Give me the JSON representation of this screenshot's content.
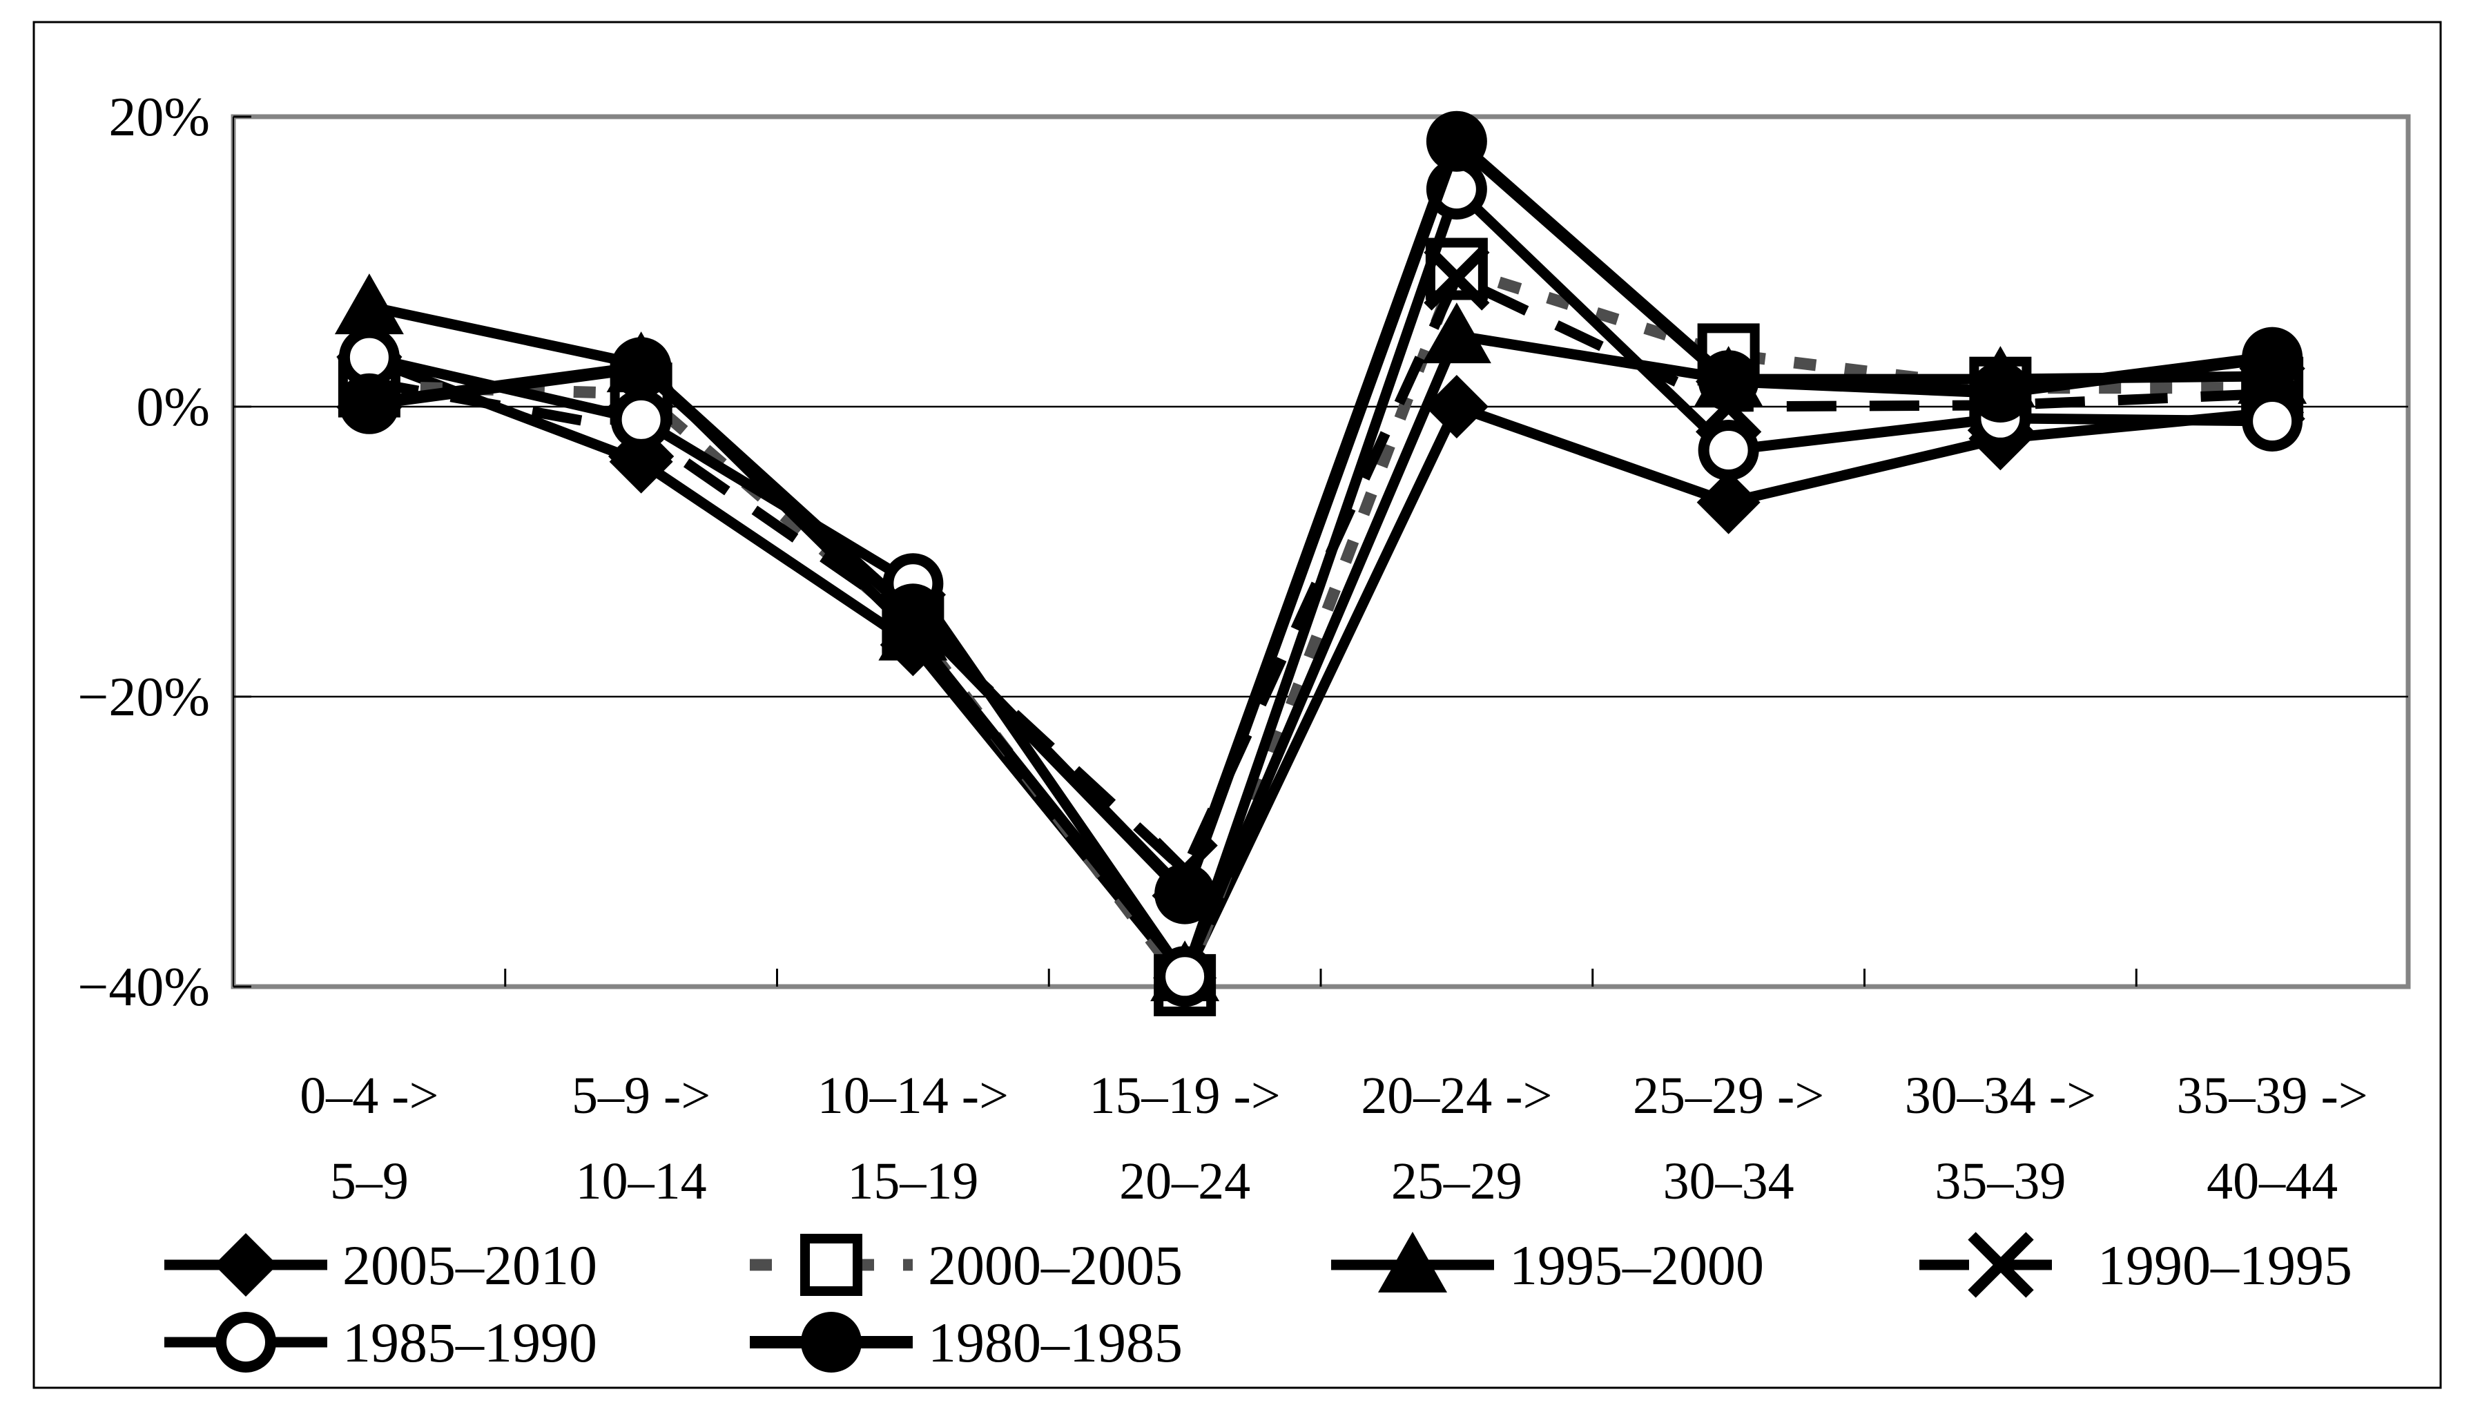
{
  "chart_data": {
    "type": "line",
    "title": "",
    "xlabel": "",
    "ylabel": "",
    "y_axis": {
      "min": -40,
      "max": 20,
      "unit": "%",
      "ticks": [
        {
          "value": 20,
          "label": "20%"
        },
        {
          "value": 0,
          "label": "0%"
        },
        {
          "value": -20,
          "label": "−20%"
        },
        {
          "value": -40,
          "label": "−40%"
        }
      ],
      "gridline_values": [
        0,
        -20
      ]
    },
    "categories": [
      {
        "top": "0–4 ->",
        "bottom": "5–9"
      },
      {
        "top": "5–9 ->",
        "bottom": "10–14"
      },
      {
        "top": "10–14 ->",
        "bottom": "15–19"
      },
      {
        "top": "15–19 ->",
        "bottom": "20–24"
      },
      {
        "top": "20–24 ->",
        "bottom": "25–29"
      },
      {
        "top": "25–29 ->",
        "bottom": "30–34"
      },
      {
        "top": "30–34 ->",
        "bottom": "35–39"
      },
      {
        "top": "35–39 ->",
        "bottom": "40–44"
      }
    ],
    "series": [
      {
        "name": "2005–2010",
        "marker": "filled-diamond",
        "line_style": "solid",
        "color": "#000000",
        "values": [
          3.3,
          -3.8,
          -16.4,
          -39.4,
          0.0,
          -6.6,
          -2.2,
          -0.4
        ]
      },
      {
        "name": "2000–2005",
        "marker": "open-square",
        "line_style": "dotted",
        "color": "#4d4d4d",
        "marker_color": "#000000",
        "values": [
          1.4,
          0.9,
          -15.2,
          -39.9,
          9.5,
          3.6,
          1.3,
          1.3
        ]
      },
      {
        "name": "1995–2000",
        "marker": "filled-triangle",
        "line_style": "solid",
        "color": "#000000",
        "values": [
          6.9,
          2.9,
          -15.6,
          -39.1,
          4.9,
          1.9,
          1.9,
          2.1
        ]
      },
      {
        "name": "1990–1995",
        "marker": "x-cross",
        "line_style": "dashed",
        "color": "#000000",
        "values": [
          1.7,
          -1.7,
          -14.7,
          -32.0,
          8.9,
          0.0,
          0.1,
          0.9
        ]
      },
      {
        "name": "1985–1990",
        "marker": "open-circle",
        "line_style": "solid",
        "color": "#000000",
        "values": [
          3.4,
          -0.9,
          -12.2,
          -39.3,
          15.0,
          -3.0,
          -0.8,
          -1.0
        ]
      },
      {
        "name": "1980–1985",
        "marker": "filled-circle",
        "line_style": "solid",
        "color": "#000000",
        "values": [
          0.2,
          2.7,
          -14.3,
          -33.6,
          18.3,
          1.8,
          1.0,
          3.4
        ]
      }
    ],
    "legend_position": "bottom",
    "grid": "horizontal-only",
    "colors": {
      "series_black": "#000000",
      "dotted_series_gray": "#4d4d4d",
      "plot_border_gray": "#848484",
      "outer_border_black": "#000000",
      "background": "#ffffff"
    }
  }
}
